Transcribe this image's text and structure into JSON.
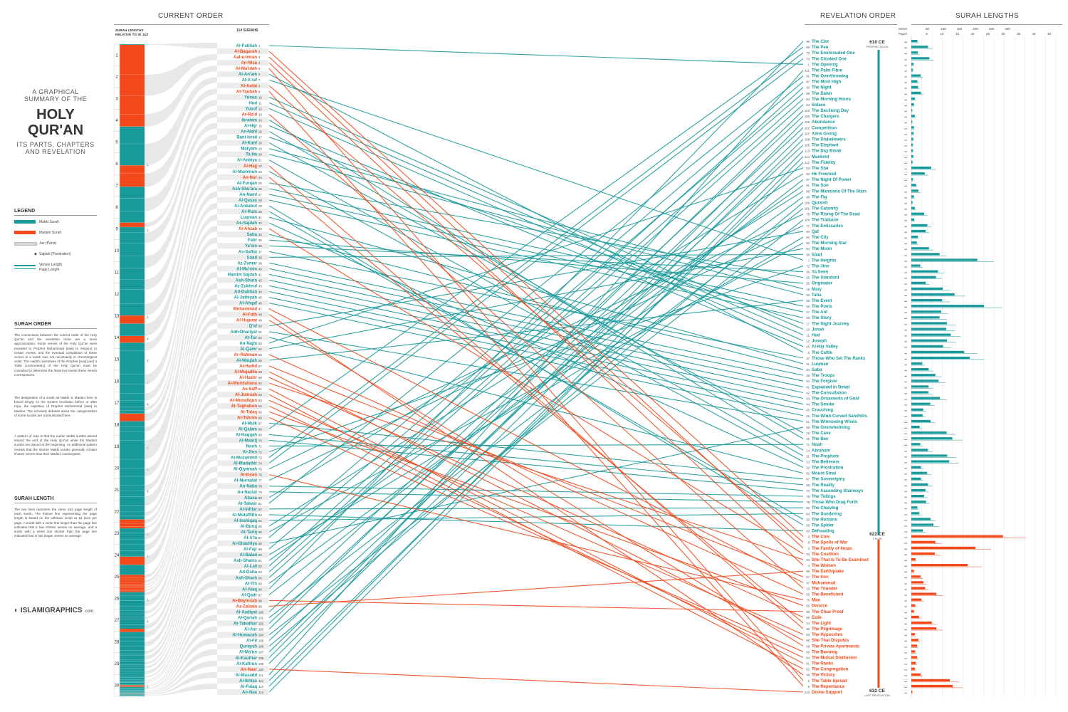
{
  "titles": {
    "line1": "A GRAPHICAL",
    "line2": "SUMMARY OF THE",
    "main1": "HOLY",
    "main2": "QUR'AN",
    "sub1": "ITS PARTS, CHAPTERS",
    "sub2": "AND REVELATION"
  },
  "headers": {
    "current_order": "CURRENT ORDER",
    "revelation_order": "REVELATION ORDER",
    "surah_lengths": "SURAH LENGTHS",
    "surah_lengths_rel": "SURAH LENGTHS RELATIVE TO 30 JUZ",
    "count": "114 SURAHS",
    "verses": "Verses",
    "pages": "Pages"
  },
  "legend": {
    "title": "LEGEND",
    "makki": "Makki Surah",
    "madani": "Madani Surah",
    "juz": "Juz (Parts)",
    "sajdah": "Sajdah (Prostration)",
    "length1": "Verses Length",
    "length2": "Page Length"
  },
  "surah_order": {
    "title": "SURAH ORDER",
    "p1": "The connections between the current order of the Holy Qur'an and the revelation order are a mere approximation. Some verses of the Holy Qur'an were revealed to Prophet Muhammad [saw] to respond to certain events, and the eventual compilation of these verses in a surah was not necessarily in chronological order. The Hadith (narratives of the Prophet [saw]) and a Tafsir (commentary) of the Holy Qur'an must be consulted to determine the historical events these verses correspond to.",
    "p2": "The designation of a surah as Makki or Madani here is based simply on the surah's revelation before or after Hijra, the migration of Prophet Muhammad [saw] to Madina. The scholarly debates about the categorization of some surahs are not illustrated here.",
    "p3": "A pattern of note is that the earlier Makki surahs placed toward the end of the Holy Qur'an while the Madani surahs are placed at the beginning. An additional pattern reveals that the shorter Makki surahs generally contain shorter verses than their Madani counterparts."
  },
  "surah_length": {
    "title": "SURAH LENGTH",
    "p1": "The two lines represent the verse and page length of each surah. The thinner line representing the page length is based on the Uthmani script at 15 lines per page. A surah with a verse line longer than the page line indicates that it has shorter verses on average, and a surah with a verse line shorter than the page line indicated that is has longer verses on average."
  },
  "timeline": {
    "e1_year": "610 CE",
    "e1_label": "PROPHETHOOD",
    "e2_year": "622 CE",
    "e2_label": "1 HIJRI",
    "e3_year": "632 CE",
    "e3_label": "LAST REVELATION"
  },
  "logo": {
    "name": "ISLAMIGRAPHICS",
    "suffix": ".com"
  },
  "colors": {
    "makki": "#18999a",
    "madani": "#f2481a",
    "juz": "#d6d6d6"
  },
  "axis": {
    "verses_ticks": [
      "50",
      "100",
      "150",
      "200",
      "250",
      "300"
    ],
    "pages_ticks": [
      "5",
      "10",
      "15",
      "20",
      "25",
      "30",
      "35",
      "40",
      "45"
    ]
  },
  "juz_sajdah": [
    6,
    9,
    13,
    14,
    15,
    16,
    17,
    19,
    20,
    21,
    23,
    24,
    26,
    27,
    30
  ],
  "chart_data": {
    "type": "table",
    "current_order": [
      "Al-Fatihah",
      "Al-Baqarah",
      "Aal-e-Imran",
      "An-Nisa",
      "Al-Ma'idah",
      "Al-An'am",
      "Al-A'raf",
      "Al-Anfal",
      "At-Taubah",
      "Yunus",
      "Hud",
      "Yusuf",
      "Ar-Ra'd",
      "Ibrahim",
      "Al-Hijr",
      "An-Nahl",
      "Bani Israil",
      "Al-Kahf",
      "Maryam",
      "Ta Ha",
      "Al-Anbiya",
      "Al-Hajj",
      "Al-Muminun",
      "An-Nur",
      "Al-Furqan",
      "Ash-Shu'ara",
      "An-Naml",
      "Al-Qasas",
      "Al-Ankabut",
      "Ar-Rum",
      "Luqman",
      "As-Sajdah",
      "Al-Ahzab",
      "Saba",
      "Fatir",
      "Ya'sin",
      "As-Saffat",
      "Saad",
      "Az-Zumar",
      "Al-Mu'min",
      "Hamim Sajdah",
      "Ash-Shura",
      "Az-Zukhruf",
      "Ad-Dukhan",
      "Al-Jathiyah",
      "Al-Ahqaf",
      "Muhammad",
      "Al-Fath",
      "Al-Hujurat",
      "Q'af",
      "Adh-Dhariyat",
      "At-Tur",
      "An-Najm",
      "Al-Qamr",
      "Ar-Rahman",
      "Al-Waqiah",
      "Al-Hadid",
      "Al-Mujadila",
      "Al-Hashr",
      "Al-Mumtahana",
      "As-Saff",
      "Al-Jumuah",
      "Al-Munafiqun",
      "At-Taghabun",
      "At-Talaq",
      "At-Tahrim",
      "Al-Mulk",
      "Al-Qalam",
      "Al-Haqqah",
      "Al-Maarij",
      "Nooh",
      "Al-Jinn",
      "Al-Muzammil",
      "Al-Mudathir",
      "Al-Qiyamah",
      "Al-Insan",
      "Al-Mursalat",
      "An-Naba",
      "An-Naziat",
      "Abasa",
      "At-Takwir",
      "Al-Infitar",
      "Al-Mutaffifin",
      "Al-Inshiqaq",
      "Al-Buruj",
      "At-Tariq",
      "Al-A'la",
      "Al-Ghashiya",
      "Al-Fajr",
      "Al-Balad",
      "Ash-Shams",
      "Al-Lail",
      "Ad-Duha",
      "Ash-Sharh",
      "At-Tin",
      "Al-Alaq",
      "Al-Qadr",
      "Al-Bayinnah",
      "Az-Zalzala",
      "Al-Aadiyat",
      "Al-Qariah",
      "At-Takathur",
      "Al-Asr",
      "Al-Humazah",
      "Al-Fil",
      "Quraysh",
      "Al-Ma'un",
      "Al-Kauthar",
      "Al-Kafirun",
      "An-Nasr",
      "Al-Masadd",
      "Al-Ikhlas",
      "Al-Falaq",
      "An-Nas"
    ],
    "madani": [
      2,
      3,
      4,
      5,
      8,
      9,
      13,
      22,
      24,
      33,
      47,
      48,
      49,
      55,
      57,
      58,
      59,
      60,
      61,
      62,
      63,
      64,
      65,
      66,
      76,
      98,
      99,
      110
    ],
    "revelation_order": [
      [
        96,
        "The Clot"
      ],
      [
        68,
        "The Pen"
      ],
      [
        73,
        "The Enshrouded One"
      ],
      [
        74,
        "The Cloaked One"
      ],
      [
        1,
        "The Opening"
      ],
      [
        111,
        "The Palm Fibre"
      ],
      [
        81,
        "The Overthrowing"
      ],
      [
        87,
        "The Most High"
      ],
      [
        92,
        "The Night"
      ],
      [
        89,
        "The Dawn"
      ],
      [
        93,
        "The Morning Hours"
      ],
      [
        94,
        "Solace"
      ],
      [
        103,
        "The Declining Day"
      ],
      [
        100,
        "The Chargers"
      ],
      [
        108,
        "Abundance"
      ],
      [
        102,
        "Competition"
      ],
      [
        107,
        "Alms Giving"
      ],
      [
        109,
        "The Disbelievers"
      ],
      [
        105,
        "The Elephant"
      ],
      [
        113,
        "The Day Break"
      ],
      [
        114,
        "Mankind"
      ],
      [
        112,
        "The Fidelity"
      ],
      [
        53,
        "The Star"
      ],
      [
        80,
        "He Frowned"
      ],
      [
        97,
        "The Night Of Power"
      ],
      [
        91,
        "The Sun"
      ],
      [
        85,
        "The Mansions Of The Stars"
      ],
      [
        95,
        "The Fig"
      ],
      [
        106,
        "Quraish"
      ],
      [
        101,
        "The Calamity"
      ],
      [
        75,
        "The Rising Of The Dead"
      ],
      [
        104,
        "The Traducer"
      ],
      [
        77,
        "The Emissaries"
      ],
      [
        50,
        "Qaf"
      ],
      [
        90,
        "The City"
      ],
      [
        86,
        "The Morning Star"
      ],
      [
        54,
        "The Moon"
      ],
      [
        38,
        "Saad"
      ],
      [
        7,
        "The Heights"
      ],
      [
        72,
        "The Jinn"
      ],
      [
        36,
        "Ya Seen"
      ],
      [
        25,
        "The Standard"
      ],
      [
        35,
        "Originator"
      ],
      [
        19,
        "Mary"
      ],
      [
        20,
        "Taha"
      ],
      [
        56,
        "The Event"
      ],
      [
        26,
        "The Poets"
      ],
      [
        27,
        "The Ant"
      ],
      [
        28,
        "The Story"
      ],
      [
        17,
        "The Night Journey"
      ],
      [
        10,
        "Jonah"
      ],
      [
        11,
        "Hud"
      ],
      [
        12,
        "Joseph"
      ],
      [
        15,
        "Al-Hijr Valley"
      ],
      [
        6,
        "The Cattle"
      ],
      [
        37,
        "Those Who Set The Ranks"
      ],
      [
        31,
        "Luqman"
      ],
      [
        34,
        "Saba"
      ],
      [
        39,
        "The Troops"
      ],
      [
        40,
        "The Forgiver"
      ],
      [
        41,
        "Explained In Detail"
      ],
      [
        42,
        "The Consultation"
      ],
      [
        43,
        "The Ornaments of Gold"
      ],
      [
        44,
        "The Smoke"
      ],
      [
        45,
        "Crouching"
      ],
      [
        46,
        "The Wind-Curved Sandhills"
      ],
      [
        51,
        "The Winnowing Winds"
      ],
      [
        88,
        "The Overwhelming"
      ],
      [
        18,
        "The Cave"
      ],
      [
        16,
        "The Bee"
      ],
      [
        71,
        "Noah"
      ],
      [
        14,
        "Abraham"
      ],
      [
        21,
        "The Prophets"
      ],
      [
        23,
        "The Believers"
      ],
      [
        32,
        "The Prostration"
      ],
      [
        52,
        "Mount Sinai"
      ],
      [
        67,
        "The Sovereignty"
      ],
      [
        69,
        "The Reality"
      ],
      [
        70,
        "The Ascending Stairways"
      ],
      [
        78,
        "The Tidings"
      ],
      [
        79,
        "Those Who Drag Forth"
      ],
      [
        82,
        "The Cleaving"
      ],
      [
        84,
        "The Sundering"
      ],
      [
        30,
        "The Romans"
      ],
      [
        29,
        "The Spider"
      ],
      [
        83,
        "Defrauding"
      ],
      [
        2,
        "The Cow"
      ],
      [
        8,
        "The Spoils of War"
      ],
      [
        3,
        "The Family of Imran"
      ],
      [
        33,
        "The Coalition"
      ],
      [
        60,
        "She That Is To Be Examined"
      ],
      [
        4,
        "The Women"
      ],
      [
        99,
        "The Earthquake"
      ],
      [
        57,
        "The Iron"
      ],
      [
        47,
        "Muhammad"
      ],
      [
        13,
        "The Thunder"
      ],
      [
        55,
        "The Beneficient"
      ],
      [
        76,
        "Man"
      ],
      [
        65,
        "Divorce"
      ],
      [
        98,
        "The Clear Proof"
      ],
      [
        59,
        "Exile"
      ],
      [
        24,
        "The Light"
      ],
      [
        22,
        "The Pilgrimage"
      ],
      [
        63,
        "The Hypocrites"
      ],
      [
        58,
        "She That Disputes"
      ],
      [
        49,
        "The Private Apartments"
      ],
      [
        66,
        "The Banning"
      ],
      [
        64,
        "The Mutual Disillusion"
      ],
      [
        61,
        "The Ranks"
      ],
      [
        62,
        "The Congregation"
      ],
      [
        48,
        "The Victory"
      ],
      [
        5,
        "The Table Spread"
      ],
      [
        9,
        "The Repentance"
      ],
      [
        110,
        "Divine Support"
      ]
    ],
    "verses": [
      7,
      286,
      200,
      176,
      120,
      165,
      206,
      75,
      129,
      109,
      123,
      111,
      43,
      52,
      99,
      128,
      111,
      110,
      98,
      135,
      112,
      78,
      118,
      64,
      77,
      227,
      93,
      88,
      69,
      60,
      34,
      30,
      73,
      54,
      45,
      83,
      182,
      88,
      75,
      85,
      54,
      53,
      89,
      59,
      37,
      35,
      38,
      29,
      18,
      45,
      60,
      49,
      62,
      55,
      78,
      96,
      29,
      22,
      24,
      13,
      14,
      11,
      11,
      18,
      12,
      12,
      30,
      52,
      52,
      44,
      28,
      28,
      20,
      56,
      40,
      31,
      50,
      40,
      46,
      42,
      29,
      19,
      36,
      25,
      22,
      17,
      19,
      26,
      30,
      20,
      15,
      21,
      11,
      8,
      8,
      19,
      5,
      8,
      8,
      11,
      11,
      8,
      3,
      9,
      5,
      4,
      7,
      3,
      6,
      3,
      5,
      4,
      5,
      6
    ]
  }
}
